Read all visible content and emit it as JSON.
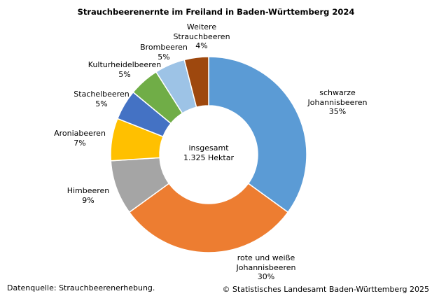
{
  "chart_data": {
    "type": "pie",
    "variant": "donut",
    "title": "Strauchbeerenernte im Freiland in Baden-Württemberg 2024",
    "center_label": [
      "insgesamt",
      "1.325 Hektar"
    ],
    "unit": "%",
    "series": [
      {
        "name": "schwarze Johannisbeeren",
        "label_lines": [
          "schwarze",
          "Johannisbeeren",
          "35%"
        ],
        "value": 35,
        "color": "#5b9bd5"
      },
      {
        "name": "rote und weiße Johannisbeeren",
        "label_lines": [
          "rote und weiße",
          "Johannisbeeren",
          "30%"
        ],
        "value": 30,
        "color": "#ed7d31"
      },
      {
        "name": "Himbeeren",
        "label_lines": [
          "Himbeeren",
          "9%"
        ],
        "value": 9,
        "color": "#a5a5a5"
      },
      {
        "name": "Aroniabeeren",
        "label_lines": [
          "Aroniabeeren",
          "7%"
        ],
        "value": 7,
        "color": "#ffc000"
      },
      {
        "name": "Stachelbeeren",
        "label_lines": [
          "Stachelbeeren",
          "5%"
        ],
        "value": 5,
        "color": "#4472c4"
      },
      {
        "name": "Kulturheidelbeeren",
        "label_lines": [
          "Kulturheidelbeeren",
          "5%"
        ],
        "value": 5,
        "color": "#70ad47"
      },
      {
        "name": "Brombeeren",
        "label_lines": [
          "Brombeeren",
          "5%"
        ],
        "value": 5,
        "color": "#9dc3e6"
      },
      {
        "name": "Weitere Strauchbeeren",
        "label_lines": [
          "Weitere",
          "Strauchbeeren",
          "4%"
        ],
        "value": 4,
        "color": "#9e480e"
      }
    ]
  },
  "footer": {
    "source": "Datenquelle: Strauchbeerenerhebung.",
    "copyright": "© Statistisches Landesamt Baden-Württemberg 2025"
  }
}
